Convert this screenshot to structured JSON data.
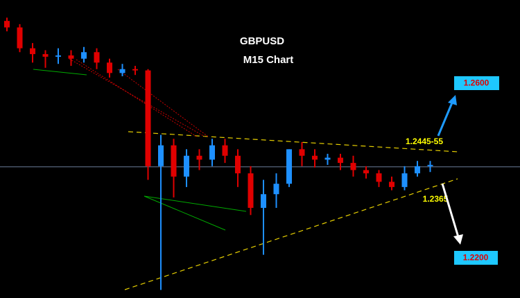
{
  "chart_data": {
    "type": "candlestick",
    "title": "GBPUSD",
    "subtitle": "M15 Chart",
    "ylim": [
      1.22,
      1.27
    ],
    "up_color": "#1e90ff",
    "down_color": "#e00000",
    "open": [
      1.2631,
      1.2621,
      1.2589,
      1.258,
      1.2576,
      1.2578,
      1.2573,
      1.2583,
      1.2567,
      1.2551,
      1.2557,
      1.2555,
      1.2408,
      1.244,
      1.2392,
      1.2424,
      1.2418,
      1.244,
      1.2424,
      1.2397,
      1.2344,
      1.2365,
      1.2381,
      1.2434,
      1.2424,
      1.2418,
      1.2421,
      1.2413,
      1.2402,
      1.2397,
      1.2384,
      1.2376,
      1.2397,
      1.2408
    ],
    "high": [
      1.2636,
      1.2626,
      1.2597,
      1.2586,
      1.2589,
      1.2586,
      1.2591,
      1.2589,
      1.2573,
      1.2565,
      1.2562,
      1.2557,
      1.2456,
      1.245,
      1.2434,
      1.2434,
      1.245,
      1.245,
      1.2434,
      1.2408,
      1.2387,
      1.2397,
      1.2434,
      1.2445,
      1.2434,
      1.2427,
      1.2427,
      1.2424,
      1.2408,
      1.2402,
      1.2392,
      1.2408,
      1.2416,
      1.2416
    ],
    "low": [
      1.2615,
      1.2583,
      1.2567,
      1.2559,
      1.2565,
      1.2562,
      1.2567,
      1.2557,
      1.2544,
      1.2546,
      1.2548,
      1.2387,
      1.2218,
      1.236,
      1.2376,
      1.2402,
      1.2408,
      1.2413,
      1.2376,
      1.2333,
      1.2272,
      1.2344,
      1.2376,
      1.2408,
      1.2406,
      1.241,
      1.2402,
      1.2392,
      1.2389,
      1.2376,
      1.2371,
      1.2371,
      1.2392,
      1.2399
    ],
    "close": [
      1.2621,
      1.2589,
      1.258,
      1.2576,
      1.2578,
      1.2573,
      1.2583,
      1.2567,
      1.2551,
      1.2557,
      1.2555,
      1.2408,
      1.244,
      1.2392,
      1.2424,
      1.2418,
      1.244,
      1.2424,
      1.2397,
      1.2344,
      1.2365,
      1.2381,
      1.2434,
      1.2424,
      1.2418,
      1.2421,
      1.2413,
      1.2402,
      1.2397,
      1.2384,
      1.2376,
      1.2397,
      1.2408,
      1.241
    ],
    "current_price": 1.2407,
    "annotations": {
      "resistance": "1.2445-55",
      "support": "1.2365",
      "upside_target": "1.2600",
      "downside_target": "1.2200"
    }
  }
}
